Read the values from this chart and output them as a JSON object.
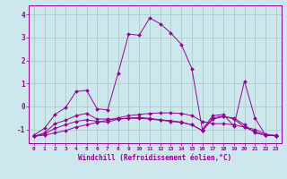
{
  "background_color": "#cce8ec",
  "grid_color": "#aacccc",
  "line_color": "#990099",
  "xlabel": "Windchill (Refroidissement éolien,°C)",
  "xlabel_fontsize": 5.5,
  "xtick_fontsize": 4.5,
  "ytick_fontsize": 5.5,
  "ylim": [
    -1.6,
    4.4
  ],
  "xlim": [
    -0.5,
    23.5
  ],
  "yticks": [
    -1,
    0,
    1,
    2,
    3,
    4
  ],
  "xticks": [
    0,
    1,
    2,
    3,
    4,
    5,
    6,
    7,
    8,
    9,
    10,
    11,
    12,
    13,
    14,
    15,
    16,
    17,
    18,
    19,
    20,
    21,
    22,
    23
  ],
  "curve1_x": [
    0,
    1,
    2,
    3,
    4,
    5,
    6,
    7,
    8,
    9,
    10,
    11,
    12,
    13,
    14,
    15,
    16,
    17,
    18,
    19,
    20,
    21,
    22,
    23
  ],
  "curve1_y": [
    -1.25,
    -0.95,
    -0.35,
    -0.05,
    0.65,
    0.7,
    -0.1,
    -0.15,
    1.45,
    3.15,
    3.1,
    3.85,
    3.6,
    3.2,
    2.7,
    1.65,
    -1.0,
    -0.4,
    -0.35,
    -0.85,
    1.1,
    -0.5,
    -1.25,
    -1.25
  ],
  "curve2_x": [
    0,
    1,
    2,
    3,
    4,
    5,
    6,
    7,
    8,
    9,
    10,
    11,
    12,
    13,
    14,
    15,
    16,
    17,
    18,
    19,
    20,
    21,
    22,
    23
  ],
  "curve2_y": [
    -1.3,
    -1.25,
    -1.15,
    -1.05,
    -0.9,
    -0.8,
    -0.7,
    -0.6,
    -0.5,
    -0.4,
    -0.35,
    -0.3,
    -0.28,
    -0.28,
    -0.3,
    -0.4,
    -0.65,
    -0.75,
    -0.75,
    -0.8,
    -0.9,
    -1.0,
    -1.2,
    -1.28
  ],
  "curve3_x": [
    0,
    1,
    2,
    3,
    4,
    5,
    6,
    7,
    8,
    9,
    10,
    11,
    12,
    13,
    14,
    15,
    16,
    17,
    18,
    19,
    20,
    21,
    22,
    23
  ],
  "curve3_y": [
    -1.3,
    -1.15,
    -0.75,
    -0.6,
    -0.4,
    -0.3,
    -0.55,
    -0.55,
    -0.55,
    -0.52,
    -0.52,
    -0.55,
    -0.6,
    -0.65,
    -0.7,
    -0.8,
    -1.05,
    -0.55,
    -0.45,
    -0.5,
    -0.8,
    -1.15,
    -1.25,
    -1.28
  ],
  "curve4_x": [
    0,
    1,
    2,
    3,
    4,
    5,
    6,
    7,
    8,
    9,
    10,
    11,
    12,
    13,
    14,
    15,
    16,
    17,
    18,
    19,
    20,
    21,
    22,
    23
  ],
  "curve4_y": [
    -1.3,
    -1.2,
    -0.95,
    -0.8,
    -0.65,
    -0.58,
    -0.65,
    -0.68,
    -0.55,
    -0.5,
    -0.48,
    -0.52,
    -0.58,
    -0.62,
    -0.68,
    -0.8,
    -1.05,
    -0.5,
    -0.42,
    -0.55,
    -0.9,
    -1.1,
    -1.25,
    -1.28
  ]
}
